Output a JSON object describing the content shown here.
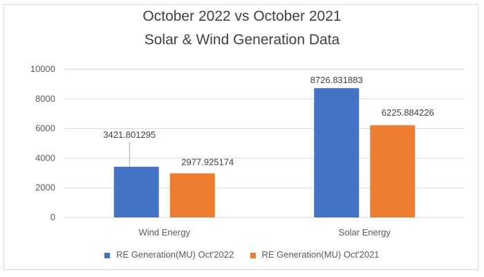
{
  "chart_data": {
    "type": "bar",
    "title_lines": [
      "October 2022 vs October 2021",
      "Solar & Wind Generation Data"
    ],
    "categories": [
      "Wind Energy",
      "Solar Energy"
    ],
    "series": [
      {
        "name": "RE Generation(MU) Oct'2022",
        "values": [
          3421.801295,
          8726.831883
        ],
        "labels": [
          "3421.801295",
          "8726.831883"
        ],
        "color": "#4472c4"
      },
      {
        "name": "RE Generation(MU) Oct'2021",
        "values": [
          2977.925174,
          6225.884226
        ],
        "labels": [
          "2977.925174",
          "6225.884226"
        ],
        "color": "#ed7d31"
      }
    ],
    "yticks": [
      "0",
      "2000",
      "4000",
      "6000",
      "8000",
      "10000"
    ],
    "ylim": [
      0,
      10000
    ],
    "xlabel": "",
    "ylabel": "",
    "legend_position": "bottom",
    "gridlines": true
  }
}
